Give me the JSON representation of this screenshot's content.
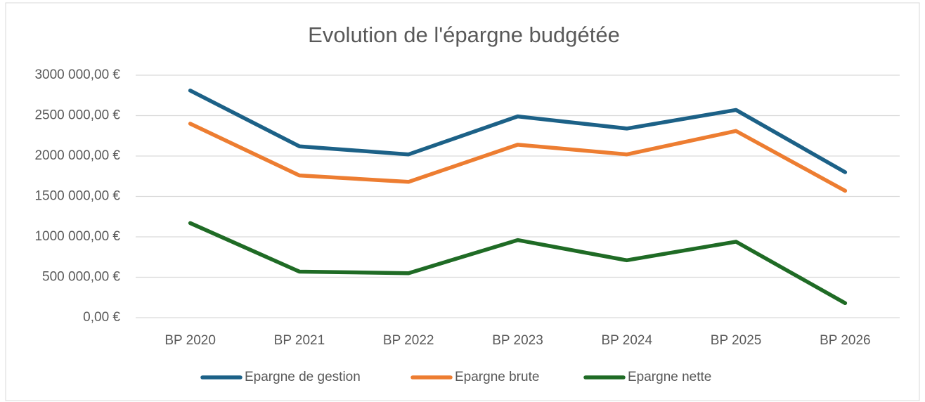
{
  "chart_data": {
    "type": "line",
    "title": "Evolution de l'épargne budgétée",
    "categories": [
      "BP 2020",
      "BP 2021",
      "BP 2022",
      "BP 2023",
      "BP 2024",
      "BP 2025",
      "BP 2026"
    ],
    "series": [
      {
        "name": "Epargne de gestion",
        "color": "#1c6187",
        "values": [
          2810000,
          2120000,
          2020000,
          2490000,
          2340000,
          2570000,
          1800000
        ]
      },
      {
        "name": "Epargne brute",
        "color": "#ed7d31",
        "values": [
          2400000,
          1760000,
          1680000,
          2140000,
          2020000,
          2310000,
          1570000
        ]
      },
      {
        "name": "Epargne nette",
        "color": "#1f6b25",
        "values": [
          1170000,
          570000,
          550000,
          960000,
          710000,
          940000,
          180000
        ]
      }
    ],
    "ylim": [
      0,
      3000000
    ],
    "yticks": [
      {
        "value": 0,
        "label": "0,00 €"
      },
      {
        "value": 500000,
        "label": "500 000,00 €"
      },
      {
        "value": 1000000,
        "label": "1000 000,00 €"
      },
      {
        "value": 1500000,
        "label": "1500 000,00 €"
      },
      {
        "value": 2000000,
        "label": "2000 000,00 €"
      },
      {
        "value": 2500000,
        "label": "2500 000,00 €"
      },
      {
        "value": 3000000,
        "label": "3000 000,00 €"
      }
    ],
    "grid": true,
    "legend": "bottom"
  }
}
